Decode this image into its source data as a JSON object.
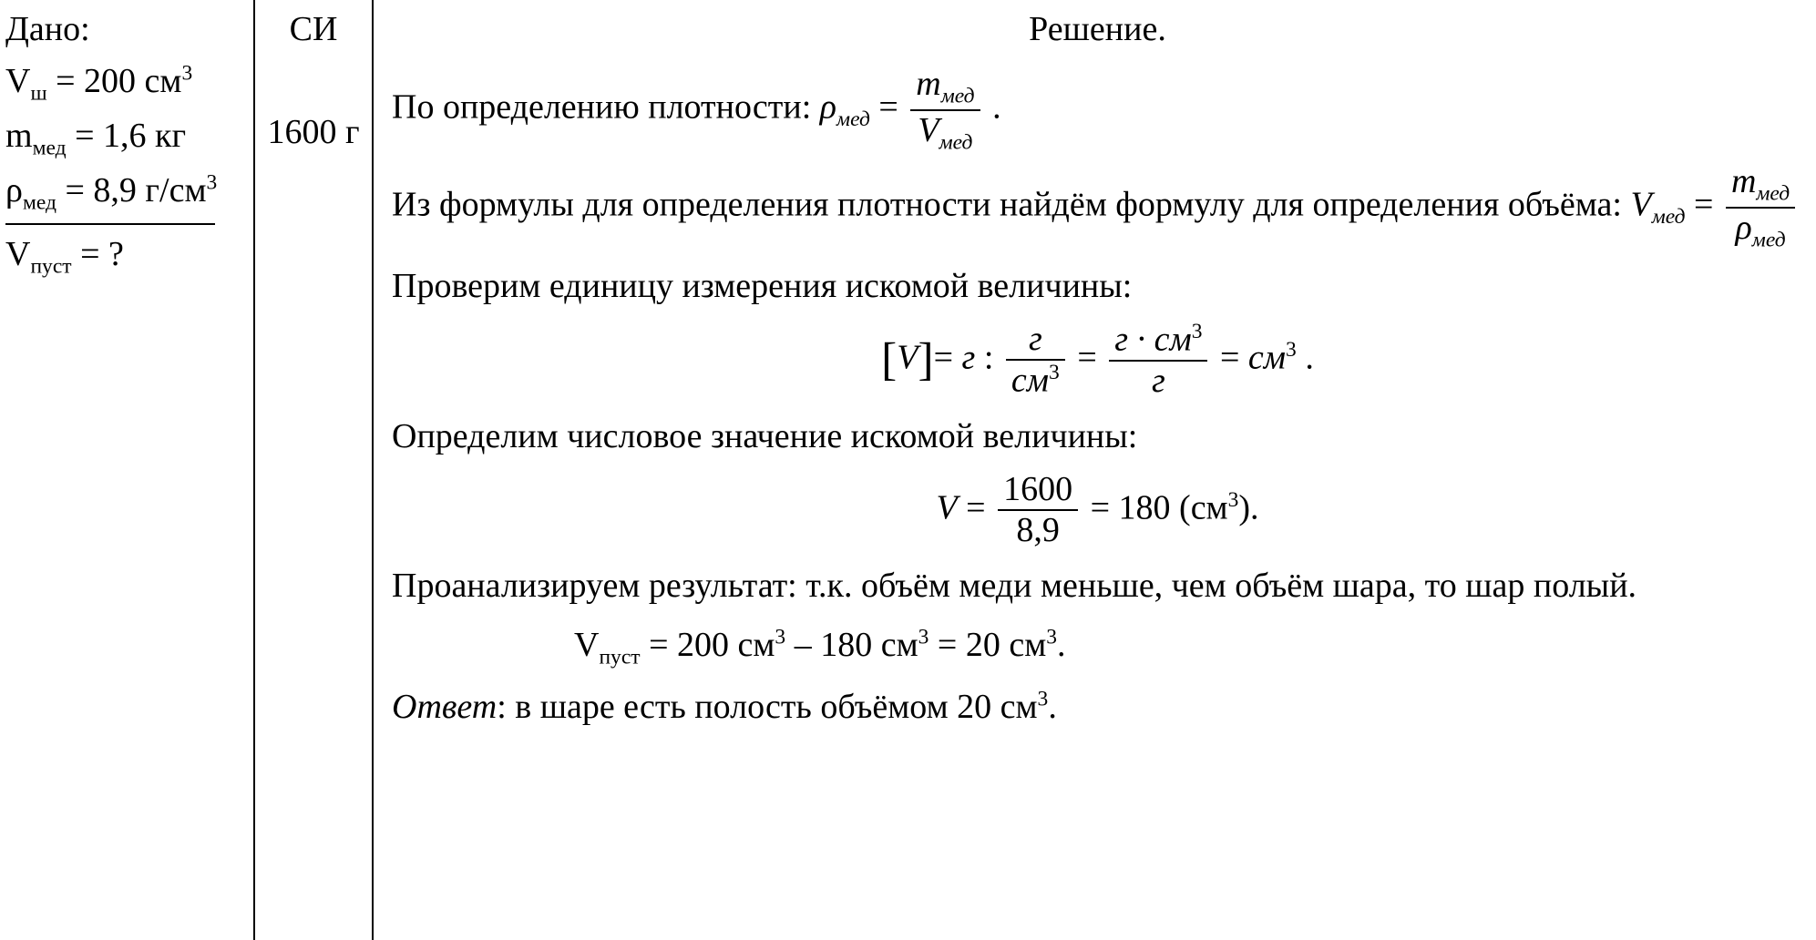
{
  "given": {
    "header": "Дано:",
    "lines": {
      "l1_var": "V",
      "l1_sub": "ш",
      "l1_eq": " = 200 см",
      "l1_sup": "3",
      "l2_var": "m",
      "l2_sub": "мед",
      "l2_eq": " = 1,6 кг",
      "l3_var": "ρ",
      "l3_sub": "мед",
      "l3_eq": " = 8,9 г/см",
      "l3_sup": "3"
    },
    "find": {
      "var": "V",
      "sub": "пуст",
      "eq": " = ?"
    }
  },
  "si": {
    "header": "СИ",
    "value": "1600 г"
  },
  "solution": {
    "title": "Решение.",
    "p1_text": "По определению плотности: ",
    "p1_lhs_sym": "ρ",
    "p1_lhs_sub": "мед",
    "p1_eq": " = ",
    "p1_num_sym": "m",
    "p1_num_sub": "мед",
    "p1_den_sym": "V",
    "p1_den_sub": "мед",
    "p1_dot": " .",
    "p2_text1": "Из формулы для определения плотности найдём формулу",
    "p2_text2": "для определения объёма: ",
    "p2_lhs_sym": "V",
    "p2_lhs_sub": "мед",
    "p2_eq": " = ",
    "p2_num_sym": "m",
    "p2_num_sub": "мед",
    "p2_den_sym": "ρ",
    "p2_den_sub": "мед",
    "p3_text": "Проверим единицу измерения искомой величины:",
    "dim_lb": "[",
    "dim_var": "V",
    "dim_rb": "]",
    "dim_eq1": "= ",
    "dim_g1": "г",
    "dim_colon": " : ",
    "dim_f1_num": "г",
    "dim_f1_den_a": "см",
    "dim_f1_den_sup": "3",
    "dim_eq2": " = ",
    "dim_f2_num_a": "г · см",
    "dim_f2_num_sup": "3",
    "dim_f2_den": "г",
    "dim_eq3": " = ",
    "dim_res_a": "см",
    "dim_res_sup": "3",
    "dim_dot": " .",
    "p4_text": "Определим числовое значение искомой величины:",
    "calc_lhs": "V",
    "calc_eq1": " = ",
    "calc_num": "1600",
    "calc_den": "8,9",
    "calc_eq2": " = 180",
    "calc_paren_l": " (",
    "calc_unit": "см",
    "calc_unit_sup": "3",
    "calc_paren_r": ").",
    "p5_text": "Проанализируем результат: т.к. объём меди меньше, чем объём шара, то шар полый.",
    "p6_var": "V",
    "p6_sub": "пуст",
    "p6_eq": " = 200 см",
    "p6_sup1": "3",
    "p6_minus": " – 180 см",
    "p6_sup2": "3",
    "p6_res": " = 20 см",
    "p6_sup3": "3",
    "p6_dot": ".",
    "ans_label": "Ответ",
    "ans_text": ": в шаре есть полость объёмом 20 см",
    "ans_sup": "3",
    "ans_dot": "."
  },
  "colors": {
    "text": "#000000",
    "background": "#ffffff",
    "border": "#000000"
  }
}
